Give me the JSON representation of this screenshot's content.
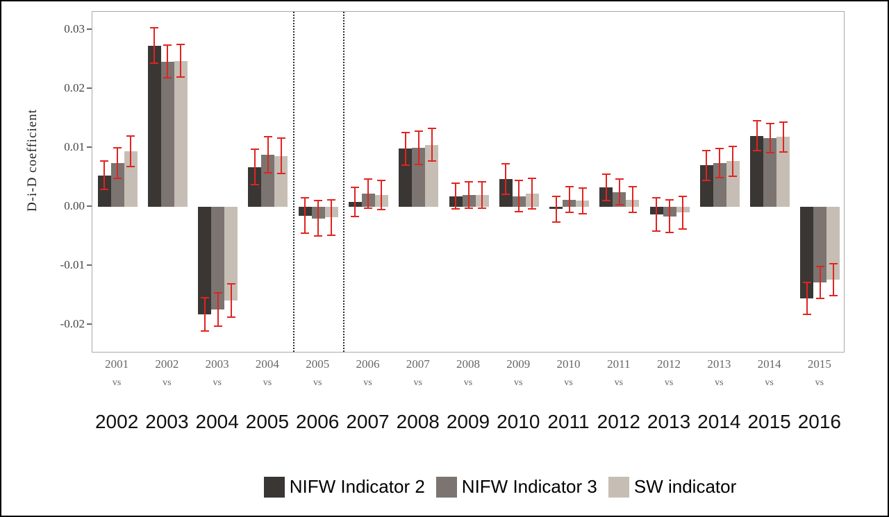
{
  "chart_data": {
    "type": "bar",
    "title": "",
    "ylabel": "D-i-D coefficient",
    "ylim": [
      -0.0248,
      0.033
    ],
    "grid": false,
    "legend_position": "bottom",
    "error_bar_color": "#e02421",
    "dotted_line_color": "#2b2b2b",
    "plot_border_color": "#a9a9a9",
    "dotted_boundaries_after_group_index": [
      3,
      4
    ],
    "yticks": [
      {
        "value": 0.03,
        "label": "0.03"
      },
      {
        "value": 0.02,
        "label": "0.02"
      },
      {
        "value": 0.01,
        "label": "0.01"
      },
      {
        "value": 0.0,
        "label": "0.00"
      },
      {
        "value": -0.01,
        "label": "-0.01"
      },
      {
        "value": -0.02,
        "label": "-0.02"
      }
    ],
    "groups": [
      {
        "year": "2001",
        "vs": "vs",
        "next_year": "2002"
      },
      {
        "year": "2002",
        "vs": "vs",
        "next_year": "2003"
      },
      {
        "year": "2003",
        "vs": "vs",
        "next_year": "2004"
      },
      {
        "year": "2004",
        "vs": "vs",
        "next_year": "2005"
      },
      {
        "year": "2005",
        "vs": "vs",
        "next_year": "2006"
      },
      {
        "year": "2006",
        "vs": "vs",
        "next_year": "2007"
      },
      {
        "year": "2007",
        "vs": "vs",
        "next_year": "2008"
      },
      {
        "year": "2008",
        "vs": "vs",
        "next_year": "2009"
      },
      {
        "year": "2009",
        "vs": "vs",
        "next_year": "2010"
      },
      {
        "year": "2010",
        "vs": "vs",
        "next_year": "2011"
      },
      {
        "year": "2011",
        "vs": "vs",
        "next_year": "2012"
      },
      {
        "year": "2012",
        "vs": "vs",
        "next_year": "2013"
      },
      {
        "year": "2013",
        "vs": "vs",
        "next_year": "2014"
      },
      {
        "year": "2014",
        "vs": "vs",
        "next_year": "2015"
      },
      {
        "year": "2015",
        "vs": "vs",
        "next_year": "2016"
      }
    ],
    "series": [
      {
        "name": "NIFW Indicator 2",
        "color": "#3a3634",
        "values": [
          0.0053,
          0.0273,
          -0.0182,
          0.0067,
          -0.0015,
          0.0008,
          0.0098,
          0.0018,
          0.0047,
          -0.0004,
          0.0033,
          -0.0013,
          0.007,
          0.012,
          -0.0155
        ],
        "errors": [
          0.0024,
          0.003,
          0.0028,
          0.003,
          0.003,
          0.0025,
          0.0028,
          0.0022,
          0.0026,
          0.0022,
          0.0022,
          0.0028,
          0.0025,
          0.0025,
          0.0027
        ]
      },
      {
        "name": "NIFW Indicator 3",
        "color": "#7b7470",
        "values": [
          0.0074,
          0.0246,
          -0.0174,
          0.0088,
          -0.002,
          0.0022,
          0.01,
          0.002,
          0.0018,
          0.0012,
          0.0025,
          -0.0016,
          0.0074,
          0.0116,
          -0.0128
        ],
        "errors": [
          0.0026,
          0.0028,
          0.0028,
          0.003,
          0.003,
          0.0025,
          0.0028,
          0.0022,
          0.0026,
          0.0022,
          0.0022,
          0.0028,
          0.0025,
          0.0025,
          0.0027
        ]
      },
      {
        "name": "SW indicator",
        "color": "#c6beb4",
        "values": [
          0.0094,
          0.0247,
          -0.0159,
          0.0086,
          -0.0018,
          0.002,
          0.0105,
          0.002,
          0.0022,
          0.001,
          0.0012,
          -0.001,
          0.0077,
          0.0118,
          -0.0123
        ],
        "errors": [
          0.0026,
          0.0028,
          0.0028,
          0.003,
          0.003,
          0.0025,
          0.0028,
          0.0022,
          0.0026,
          0.0022,
          0.0022,
          0.0028,
          0.0025,
          0.0025,
          0.0027
        ]
      }
    ]
  }
}
